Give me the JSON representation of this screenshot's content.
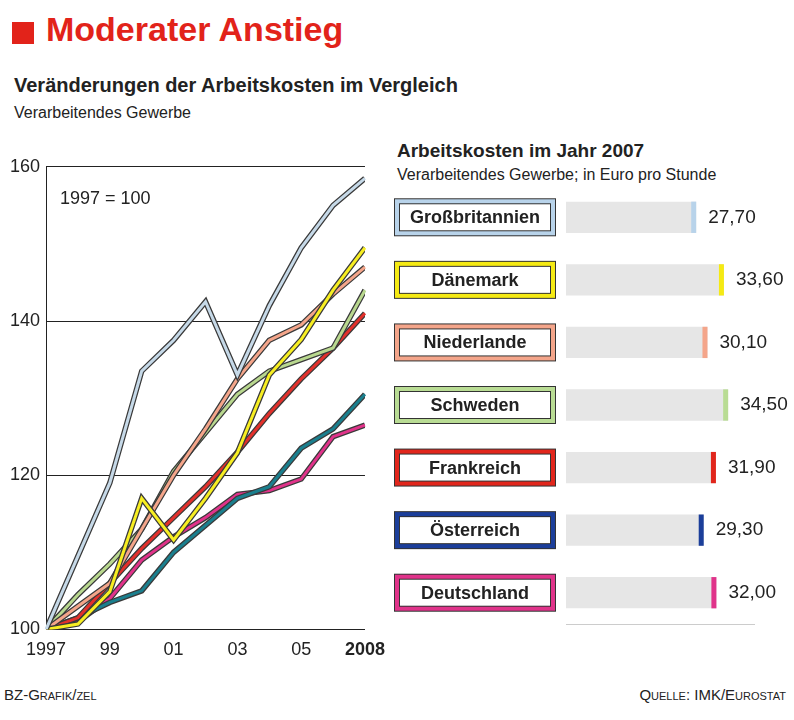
{
  "title": "Moderater Anstieg",
  "credit": "BZ-Grafik/zel",
  "source": "Quelle: IMK/Eurostat",
  "chart_data": [
    {
      "type": "line",
      "title": "Veränderungen der Arbeitskosten im Vergleich",
      "subtitle": "Verarbeitendes Gewerbe",
      "annotation": "1997 = 100",
      "categories": [
        "1997",
        null,
        "99",
        null,
        "01",
        null,
        "03",
        null,
        "05",
        null,
        "2008"
      ],
      "series": [
        {
          "name": "Großbritannien",
          "color": "#c6d9e8",
          "values": [
            100,
            109.5,
            119,
            133.5,
            137.5,
            142.5,
            133,
            142,
            149.5,
            155,
            158.5
          ]
        },
        {
          "name": "Dänemark",
          "color": "#f7ee22",
          "values": [
            100,
            100.7,
            104.9,
            117,
            111.6,
            117,
            122.9,
            133,
            137.6,
            144,
            149.5
          ]
        },
        {
          "name": "Niederlande",
          "color": "#f4a58a",
          "values": [
            100,
            103,
            106,
            113,
            120,
            126,
            132.5,
            137.5,
            139.5,
            143.5,
            147
          ]
        },
        {
          "name": "Schweden",
          "color": "#b9d88f",
          "values": [
            100,
            104.5,
            108.5,
            113,
            120.5,
            125.5,
            130.5,
            133.5,
            135,
            136.5,
            144
          ]
        },
        {
          "name": "Frankreich",
          "color": "#e2302b",
          "values": [
            100,
            101.5,
            106,
            110.5,
            114.5,
            118.5,
            123,
            128,
            132.5,
            136.5,
            141
          ]
        },
        {
          "name": "Österreich",
          "color": "#1a7f8e",
          "values": [
            100,
            101.5,
            103.5,
            105,
            110,
            113.5,
            117,
            118.5,
            123.5,
            126,
            130.5
          ]
        },
        {
          "name": "Deutschland",
          "color": "#e0338a",
          "values": [
            100,
            101,
            104,
            109,
            112,
            114.5,
            117.5,
            118,
            119.5,
            125,
            126.5
          ]
        }
      ],
      "ylim": [
        100,
        160
      ],
      "yticks": [
        100,
        120,
        140,
        160
      ],
      "grid": true
    },
    {
      "type": "bar",
      "orientation": "horizontal",
      "title": "Arbeitskosten im Jahr 2007",
      "subtitle": "Verarbeitendes Gewerbe; in Euro pro Stunde",
      "categories": [
        "Großbritannien",
        "Dänemark",
        "Niederlande",
        "Schweden",
        "Frankreich",
        "Österreich",
        "Deutschland"
      ],
      "values": [
        27.7,
        33.6,
        30.1,
        34.5,
        31.9,
        29.3,
        32.0
      ],
      "value_labels": [
        "27,70",
        "33,60",
        "30,10",
        "34,50",
        "31,90",
        "29,30",
        "32,00"
      ],
      "colors": [
        "#b8d3ea",
        "#f5ea14",
        "#f4a58a",
        "#b9dc94",
        "#e1261c",
        "#1b3e9a",
        "#e0338a"
      ],
      "data_labels": true,
      "xlim": [
        0,
        40
      ],
      "tick_labels": false,
      "grid": false
    }
  ]
}
